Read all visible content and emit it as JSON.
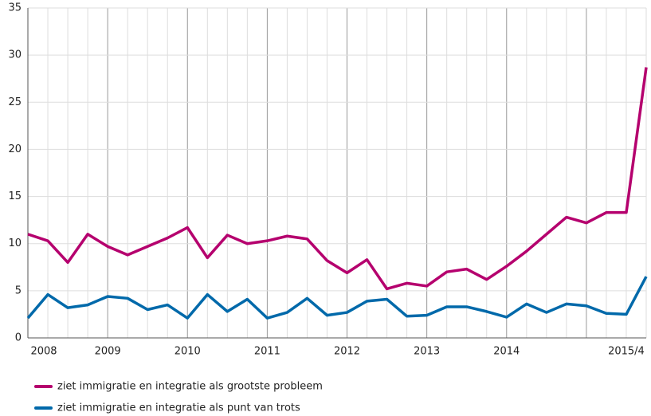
{
  "chart_data": {
    "type": "line",
    "categories": [
      null,
      "2008",
      null,
      null,
      "2009",
      null,
      null,
      null,
      "2010",
      null,
      null,
      null,
      "2011",
      null,
      null,
      null,
      "2012",
      null,
      null,
      null,
      "2013",
      null,
      null,
      null,
      "2014",
      null,
      null,
      null,
      null,
      null,
      "2015/4",
      null
    ],
    "series": [
      {
        "name": "ziet immigratie en integratie als grootste probleem",
        "color": "#b5006e",
        "values": [
          11,
          10.3,
          8.0,
          11,
          9.7,
          8.8,
          9.7,
          10.6,
          11.7,
          8.5,
          10.9,
          10.0,
          10.3,
          10.8,
          10.5,
          8.2,
          6.9,
          8.3,
          5.2,
          5.8,
          5.5,
          7.0,
          7.3,
          6.2,
          7.6,
          9.2,
          11.0,
          12.8,
          12.2,
          13.3,
          13.3,
          28.7
        ]
      },
      {
        "name": "ziet immigratie en integratie als punt van trots",
        "color": "#0069aa",
        "values": [
          2.1,
          4.6,
          3.2,
          3.5,
          4.4,
          4.2,
          3.0,
          3.5,
          2.1,
          4.6,
          2.8,
          4.1,
          2.1,
          2.7,
          4.2,
          2.4,
          2.7,
          3.9,
          4.1,
          2.3,
          2.4,
          3.3,
          3.3,
          2.8,
          2.2,
          3.6,
          2.7,
          3.6,
          3.4,
          2.6,
          2.5,
          6.5
        ]
      }
    ],
    "ylim": [
      0,
      35
    ],
    "yticks": [
      0,
      5,
      10,
      15,
      20,
      25,
      30,
      35
    ],
    "grid": true
  }
}
